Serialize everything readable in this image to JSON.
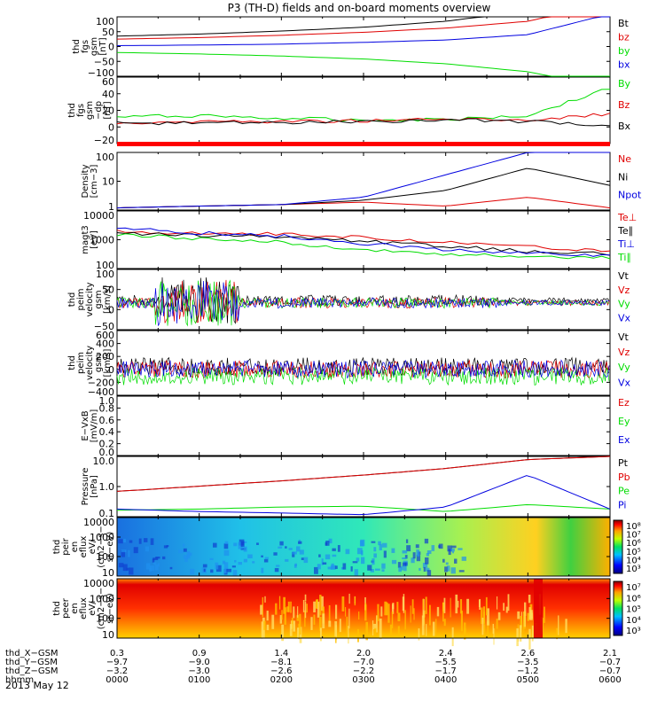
{
  "title": "P3 (TH-D) fields and on-board moments overview",
  "date": "2013 May 12",
  "colors": {
    "black": "#000000",
    "red": "#e00000",
    "green": "#00dd00",
    "blue": "#0000e0",
    "navy": "#0000aa"
  },
  "panels": [
    {
      "id": "fgs_gsm",
      "ylabel": [
        "thd",
        "fgs",
        "gsm",
        "[nT]"
      ],
      "yticks": [
        "100",
        "50",
        "0",
        "−50",
        "−100"
      ],
      "ylim": [
        -100,
        100
      ],
      "scale": "linear",
      "legend": [
        {
          "t": "Bt",
          "c": "black"
        },
        {
          "t": "bz",
          "c": "red"
        },
        {
          "t": "by",
          "c": "green"
        },
        {
          "t": "bx",
          "c": "blue"
        }
      ]
    },
    {
      "id": "fgs_gsm_dp",
      "ylabel": [
        "thd",
        "fgs",
        "gsm",
        "−dp",
        "[nT]"
      ],
      "yticks": [
        "60",
        "40",
        "20",
        "0",
        "−20"
      ],
      "ylim": [
        -30,
        60
      ],
      "scale": "linear",
      "legend": [
        {
          "t": "By",
          "c": "green"
        },
        {
          "t": "Bz",
          "c": "red"
        },
        {
          "t": "Bx",
          "c": "black"
        }
      ]
    },
    {
      "id": "density",
      "ylabel": [
        "Density",
        "[cm−3]"
      ],
      "yticks": [
        "100",
        "10",
        "1"
      ],
      "ylim": [
        0.4,
        150
      ],
      "scale": "log",
      "legend": [
        {
          "t": "Ne",
          "c": "red"
        },
        {
          "t": "Ni",
          "c": "black"
        },
        {
          "t": "Npot",
          "c": "blue"
        }
      ]
    },
    {
      "id": "temperature",
      "ylabel": [
        "magt3",
        "[eV]"
      ],
      "yticks": [
        "10000",
        "1000",
        "100"
      ],
      "ylim": [
        100,
        15000
      ],
      "scale": "log",
      "legend": [
        {
          "t": "Te⊥",
          "c": "red"
        },
        {
          "t": "Te∥",
          "c": "black"
        },
        {
          "t": "Ti⊥",
          "c": "blue"
        },
        {
          "t": "Ti∥",
          "c": "green"
        }
      ]
    },
    {
      "id": "velocity_e",
      "ylabel": [
        "thd",
        "peim",
        "velocity",
        "gsm",
        "[km/s]"
      ],
      "yticks": [
        "100",
        "50",
        "0",
        "−50"
      ],
      "ylim": [
        -80,
        100
      ],
      "scale": "linear",
      "legend": [
        {
          "t": "Vt",
          "c": "black"
        },
        {
          "t": "Vz",
          "c": "red"
        },
        {
          "t": "Vy",
          "c": "green"
        },
        {
          "t": "Vx",
          "c": "blue"
        }
      ]
    },
    {
      "id": "velocity_i",
      "ylabel": [
        "thd",
        "peim",
        "velocity",
        "gsm",
        "[km/s]"
      ],
      "yticks": [
        "600",
        "400",
        "200",
        "0",
        "−200",
        "−400"
      ],
      "ylim": [
        -420,
        620
      ],
      "scale": "linear",
      "legend": [
        {
          "t": "Vt",
          "c": "black"
        },
        {
          "t": "Vz",
          "c": "red"
        },
        {
          "t": "Vy",
          "c": "green"
        },
        {
          "t": "Vx",
          "c": "blue"
        }
      ]
    },
    {
      "id": "efield",
      "ylabel": [
        "E−VxB",
        "[mV/m]"
      ],
      "yticks": [
        "1.0",
        "0.8",
        "0.6",
        "0.4",
        "0.2",
        "0.0"
      ],
      "ylim": [
        0,
        1
      ],
      "scale": "linear",
      "legend": [
        {
          "t": "Ez",
          "c": "red"
        },
        {
          "t": "Ey",
          "c": "green"
        },
        {
          "t": "Ex",
          "c": "blue"
        }
      ]
    },
    {
      "id": "pressure",
      "ylabel": [
        "Pressure",
        "[nPa]"
      ],
      "yticks": [
        "10.0",
        "1.0",
        "0.1"
      ],
      "ylim": [
        0.05,
        12
      ],
      "scale": "log",
      "legend": [
        {
          "t": "Pt",
          "c": "black"
        },
        {
          "t": "Pb",
          "c": "red"
        },
        {
          "t": "Pe",
          "c": "green"
        },
        {
          "t": "Pi",
          "c": "blue"
        }
      ]
    },
    {
      "id": "ion_spec",
      "ylabel": [
        "thd",
        "peir",
        "en",
        "eflux",
        "eV/",
        "(cm2−s−",
        "sr−eV)"
      ],
      "yticks": [
        "10000",
        "1000",
        "100",
        "10"
      ],
      "scale": "log",
      "colorbar": [
        "10⁸",
        "10⁷",
        "10⁶",
        "10⁵",
        "10⁴",
        "10³"
      ]
    },
    {
      "id": "elec_spec",
      "ylabel": [
        "thd",
        "peer",
        "en",
        "eflux",
        "eV/",
        "(cm2−s−",
        "sr−eV)"
      ],
      "yticks": [
        "10000",
        "1000",
        "100",
        "10"
      ],
      "scale": "log",
      "colorbar": [
        "10⁷",
        "10⁶",
        "10⁵",
        "10⁴",
        "10³"
      ]
    }
  ],
  "xaxis": {
    "rows": [
      {
        "label": "thd_X−GSM",
        "values": [
          "0.3",
          "0.9",
          "1.4",
          "2.0",
          "2.4",
          "2.6",
          "2.1"
        ]
      },
      {
        "label": "thd_Y−GSM",
        "values": [
          "−9.7",
          "−9.0",
          "−8.1",
          "−7.0",
          "−5.5",
          "−3.5",
          "−0.7"
        ]
      },
      {
        "label": "thd_Z−GSM",
        "values": [
          "−3.2",
          "−3.0",
          "−2.6",
          "−2.2",
          "−1.7",
          "−1.2",
          "−0.7"
        ]
      },
      {
        "label": "hhmm",
        "values": [
          "0000",
          "0100",
          "0200",
          "0300",
          "0400",
          "0500",
          "0600"
        ]
      }
    ]
  },
  "chart_data": {
    "type": "line",
    "title": "P3 (TH-D) fields and on-board moments overview",
    "x": [
      "0000",
      "0100",
      "0200",
      "0300",
      "0400",
      "0500",
      "0600"
    ],
    "xlabel": "hhmm",
    "series": [
      {
        "name": "Bt",
        "panel": "fgs_gsm",
        "values": [
          35,
          42,
          52,
          65,
          85,
          120,
          200
        ]
      },
      {
        "name": "bz",
        "panel": "fgs_gsm",
        "values": [
          25,
          30,
          38,
          48,
          62,
          85,
          150
        ]
      },
      {
        "name": "by",
        "panel": "fgs_gsm",
        "values": [
          -20,
          -25,
          -32,
          -42,
          -58,
          -85,
          -140
        ]
      },
      {
        "name": "bx",
        "panel": "fgs_gsm",
        "values": [
          3,
          5,
          8,
          14,
          22,
          40,
          110
        ]
      },
      {
        "name": "By",
        "panel": "fgs_gsm_dp",
        "values": [
          6,
          8,
          4,
          2,
          3,
          8,
          45
        ]
      },
      {
        "name": "Bz",
        "panel": "fgs_gsm_dp",
        "values": [
          -2,
          0,
          0,
          1,
          3,
          2,
          10
        ]
      },
      {
        "name": "Bx",
        "panel": "fgs_gsm_dp",
        "values": [
          -3,
          -2,
          -1,
          0,
          2,
          0,
          -5
        ]
      },
      {
        "name": "Ne",
        "panel": "density",
        "values": [
          0.5,
          0.6,
          0.7,
          0.9,
          0.6,
          1.5,
          0.5
        ]
      },
      {
        "name": "Ni",
        "panel": "density",
        "values": [
          0.5,
          0.6,
          0.7,
          1.1,
          3,
          30,
          5
        ]
      },
      {
        "name": "Npot",
        "panel": "density",
        "values": [
          0.5,
          0.6,
          0.7,
          1.5,
          15,
          150,
          150
        ]
      },
      {
        "name": "Te⊥",
        "panel": "temperature",
        "values": [
          2500,
          2200,
          2000,
          1500,
          1000,
          650,
          450
        ]
      },
      {
        "name": "Te∥",
        "panel": "temperature",
        "values": [
          2200,
          1800,
          1600,
          1100,
          700,
          450,
          350
        ]
      },
      {
        "name": "Ti⊥",
        "panel": "temperature",
        "values": [
          3500,
          2200,
          1700,
          900,
          500,
          400,
          300
        ]
      },
      {
        "name": "Ti∥",
        "panel": "temperature",
        "values": [
          2000,
          1300,
          1000,
          500,
          350,
          300,
          250
        ]
      },
      {
        "name": "Pt",
        "panel": "pressure",
        "values": [
          0.5,
          0.8,
          1.3,
          2.2,
          4,
          9,
          12
        ]
      },
      {
        "name": "Pb",
        "panel": "pressure",
        "values": [
          0.5,
          0.8,
          1.3,
          2.2,
          4,
          9,
          12
        ]
      },
      {
        "name": "Pe",
        "panel": "pressure",
        "values": [
          0.09,
          0.1,
          0.12,
          0.13,
          0.08,
          0.15,
          0.1
        ]
      },
      {
        "name": "Pi",
        "panel": "pressure",
        "values": [
          0.1,
          0.08,
          0.07,
          0.06,
          0.12,
          2.2,
          0.1
        ]
      }
    ]
  }
}
